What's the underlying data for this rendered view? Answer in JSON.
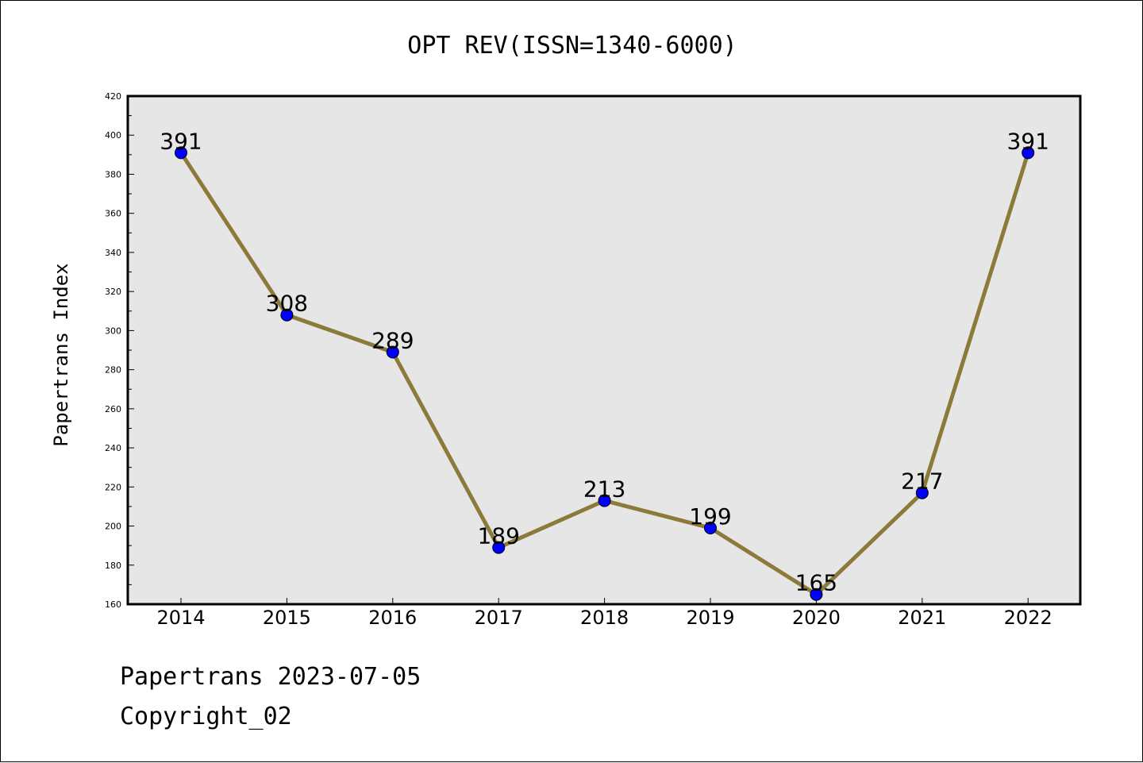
{
  "chart_data": {
    "type": "line",
    "title": "OPT REV(ISSN=1340-6000)",
    "xlabel": "",
    "ylabel": "Papertrans Index",
    "categories": [
      "2014",
      "2015",
      "2016",
      "2017",
      "2018",
      "2019",
      "2020",
      "2021",
      "2022"
    ],
    "series": [
      {
        "values": [
          391,
          308,
          289,
          189,
          213,
          199,
          165,
          217,
          391
        ]
      }
    ],
    "ylim": [
      160,
      420
    ],
    "yticks": [
      160,
      180,
      200,
      220,
      240,
      260,
      280,
      300,
      320,
      340,
      360,
      380,
      400,
      420
    ],
    "grid": false,
    "data_labels": true,
    "colors": {
      "line": "#8B7A3A",
      "marker": "#0000FF",
      "plot_background": "#E6E6E6"
    }
  },
  "footer": {
    "line1": "Papertrans 2023-07-05",
    "line2": "Copyright_02"
  }
}
